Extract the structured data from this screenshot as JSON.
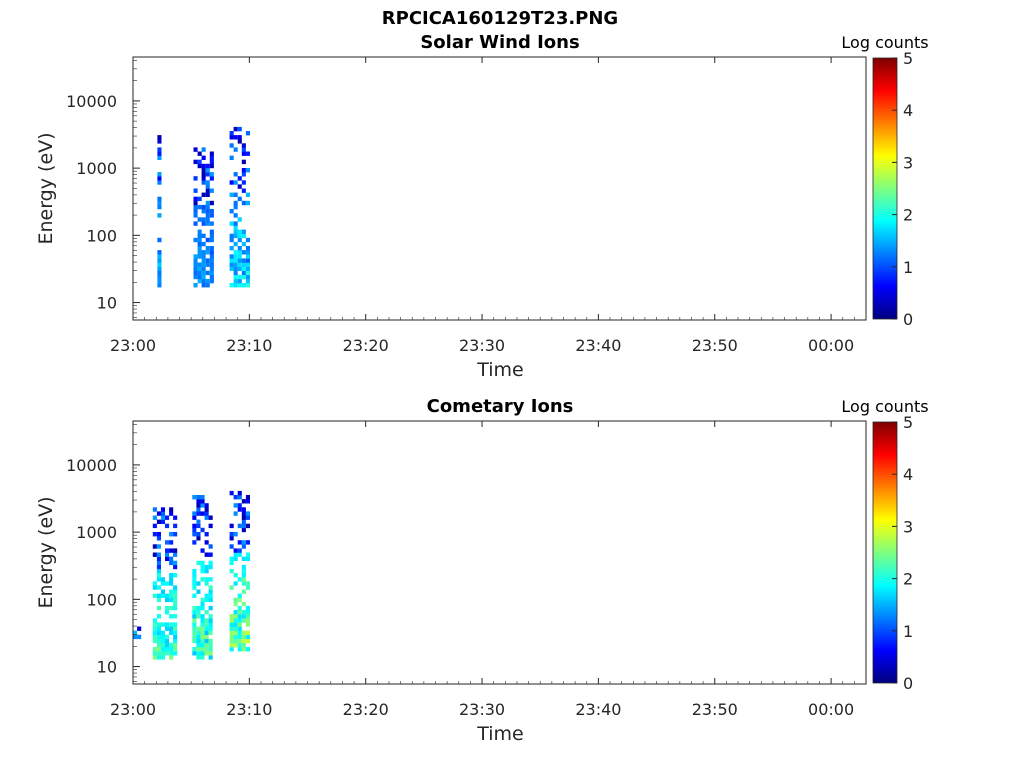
{
  "figure_title": "RPCICA160129T23.PNG",
  "colormap": [
    "#00007f",
    "#0000ff",
    "#007fff",
    "#00ffff",
    "#7fff7f",
    "#ffff00",
    "#ff7f00",
    "#ff0000",
    "#7f0000"
  ],
  "chart_data": [
    {
      "type": "heatmap",
      "title": "Solar Wind Ions",
      "xlabel": "Time",
      "ylabel": "Energy (eV)",
      "x_ticks": [
        "23:00",
        "23:10",
        "23:20",
        "23:30",
        "23:40",
        "23:50",
        "00:00"
      ],
      "x_range_min": [
        0,
        63
      ],
      "y_ticks": [
        "10",
        "100",
        "1000",
        "10000"
      ],
      "y_scale": "log",
      "y_range_ev": [
        5.5,
        45000
      ],
      "colorbar": {
        "label": "Log counts",
        "ticks": [
          "0",
          "1",
          "2",
          "3",
          "4",
          "5"
        ],
        "range": [
          0,
          5
        ]
      },
      "bursts": [
        {
          "t": [
            2.1,
            2.4
          ],
          "emin": 16,
          "emax": 3300,
          "hot_low": 1.1,
          "hot_high": 1.9
        },
        {
          "t": [
            5.2,
            6.7
          ],
          "emin": 16,
          "emax": 2000,
          "hot_low": 1.0,
          "hot_high": 1.6
        },
        {
          "t": [
            8.3,
            10.0
          ],
          "emin": 16,
          "emax": 4200,
          "hot_low": 1.1,
          "hot_high": 2.2
        }
      ]
    },
    {
      "type": "heatmap",
      "title": "Cometary Ions",
      "xlabel": "Time",
      "ylabel": "Energy (eV)",
      "x_ticks": [
        "23:00",
        "23:10",
        "23:20",
        "23:30",
        "23:40",
        "23:50",
        "00:00"
      ],
      "x_range_min": [
        0,
        63
      ],
      "y_ticks": [
        "10",
        "100",
        "1000",
        "10000"
      ],
      "y_scale": "log",
      "y_range_ev": [
        5.5,
        45000
      ],
      "colorbar": {
        "label": "Log counts",
        "ticks": [
          "0",
          "1",
          "2",
          "3",
          "4",
          "5"
        ],
        "range": [
          0,
          5
        ]
      },
      "bursts": [
        {
          "t": [
            0.0,
            0.7
          ],
          "emin": 25,
          "emax": 45,
          "hot_low": 1.3,
          "hot_high": 1.8
        },
        {
          "t": [
            1.7,
            3.6
          ],
          "emin": 12,
          "emax": 2500,
          "hot_low": 1.6,
          "hot_high": 2.6
        },
        {
          "t": [
            5.1,
            6.6
          ],
          "emin": 12,
          "emax": 3500,
          "hot_low": 1.6,
          "hot_high": 2.7
        },
        {
          "t": [
            8.3,
            10.0
          ],
          "emin": 16,
          "emax": 4500,
          "hot_low": 1.7,
          "hot_high": 3.0
        }
      ]
    }
  ]
}
